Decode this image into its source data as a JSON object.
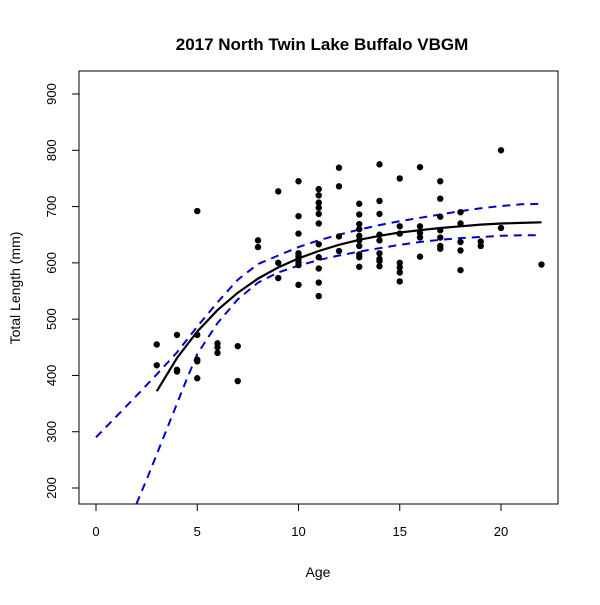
{
  "chart_data": {
    "type": "scatter",
    "title": "2017 North Twin Lake Buffalo VBGM",
    "xlabel": "Age",
    "ylabel": "Total Length (mm)",
    "xlim": [
      0,
      22
    ],
    "ylim": [
      200,
      900
    ],
    "x_ticks": [
      0,
      5,
      10,
      15,
      20
    ],
    "y_ticks": [
      200,
      300,
      400,
      500,
      600,
      700,
      800,
      900
    ],
    "grid": false,
    "observed_points": [
      {
        "x": 3,
        "y": 455
      },
      {
        "x": 3,
        "y": 418
      },
      {
        "x": 4,
        "y": 472
      },
      {
        "x": 4,
        "y": 410
      },
      {
        "x": 4,
        "y": 407
      },
      {
        "x": 5,
        "y": 692
      },
      {
        "x": 5,
        "y": 472
      },
      {
        "x": 5,
        "y": 428
      },
      {
        "x": 5,
        "y": 425
      },
      {
        "x": 5,
        "y": 395
      },
      {
        "x": 6,
        "y": 457
      },
      {
        "x": 6,
        "y": 450
      },
      {
        "x": 6,
        "y": 440
      },
      {
        "x": 7,
        "y": 452
      },
      {
        "x": 7,
        "y": 390
      },
      {
        "x": 8,
        "y": 640
      },
      {
        "x": 8,
        "y": 628
      },
      {
        "x": 9,
        "y": 727
      },
      {
        "x": 9,
        "y": 600
      },
      {
        "x": 9,
        "y": 573
      },
      {
        "x": 10,
        "y": 745
      },
      {
        "x": 10,
        "y": 683
      },
      {
        "x": 10,
        "y": 652
      },
      {
        "x": 10,
        "y": 617
      },
      {
        "x": 10,
        "y": 612
      },
      {
        "x": 10,
        "y": 607
      },
      {
        "x": 10,
        "y": 601
      },
      {
        "x": 10,
        "y": 596
      },
      {
        "x": 10,
        "y": 561
      },
      {
        "x": 11,
        "y": 731
      },
      {
        "x": 11,
        "y": 720
      },
      {
        "x": 11,
        "y": 707
      },
      {
        "x": 11,
        "y": 698
      },
      {
        "x": 11,
        "y": 687
      },
      {
        "x": 11,
        "y": 670
      },
      {
        "x": 11,
        "y": 633
      },
      {
        "x": 11,
        "y": 610
      },
      {
        "x": 11,
        "y": 590
      },
      {
        "x": 11,
        "y": 565
      },
      {
        "x": 11,
        "y": 541
      },
      {
        "x": 12,
        "y": 769
      },
      {
        "x": 12,
        "y": 736
      },
      {
        "x": 12,
        "y": 647
      },
      {
        "x": 12,
        "y": 621
      },
      {
        "x": 13,
        "y": 705
      },
      {
        "x": 13,
        "y": 686
      },
      {
        "x": 13,
        "y": 669
      },
      {
        "x": 13,
        "y": 660
      },
      {
        "x": 13,
        "y": 648
      },
      {
        "x": 13,
        "y": 640
      },
      {
        "x": 13,
        "y": 630
      },
      {
        "x": 13,
        "y": 615
      },
      {
        "x": 13,
        "y": 610
      },
      {
        "x": 13,
        "y": 593
      },
      {
        "x": 14,
        "y": 775
      },
      {
        "x": 14,
        "y": 710
      },
      {
        "x": 14,
        "y": 687
      },
      {
        "x": 14,
        "y": 650
      },
      {
        "x": 14,
        "y": 640
      },
      {
        "x": 14,
        "y": 617
      },
      {
        "x": 14,
        "y": 607
      },
      {
        "x": 14,
        "y": 603
      },
      {
        "x": 14,
        "y": 594
      },
      {
        "x": 15,
        "y": 750
      },
      {
        "x": 15,
        "y": 665
      },
      {
        "x": 15,
        "y": 652
      },
      {
        "x": 15,
        "y": 600
      },
      {
        "x": 15,
        "y": 592
      },
      {
        "x": 15,
        "y": 583
      },
      {
        "x": 15,
        "y": 567
      },
      {
        "x": 16,
        "y": 770
      },
      {
        "x": 16,
        "y": 665
      },
      {
        "x": 16,
        "y": 653
      },
      {
        "x": 16,
        "y": 645
      },
      {
        "x": 16,
        "y": 611
      },
      {
        "x": 17,
        "y": 745
      },
      {
        "x": 17,
        "y": 714
      },
      {
        "x": 17,
        "y": 682
      },
      {
        "x": 17,
        "y": 658
      },
      {
        "x": 17,
        "y": 645
      },
      {
        "x": 17,
        "y": 630
      },
      {
        "x": 17,
        "y": 625
      },
      {
        "x": 18,
        "y": 690
      },
      {
        "x": 18,
        "y": 670
      },
      {
        "x": 18,
        "y": 637
      },
      {
        "x": 18,
        "y": 622
      },
      {
        "x": 18,
        "y": 587
      },
      {
        "x": 19,
        "y": 638
      },
      {
        "x": 19,
        "y": 630
      },
      {
        "x": 20,
        "y": 800
      },
      {
        "x": 20,
        "y": 662
      },
      {
        "x": 22,
        "y": 597
      }
    ],
    "fit_curve": {
      "color": "#000000",
      "points": [
        {
          "x": 3,
          "y": 372
        },
        {
          "x": 4,
          "y": 431
        },
        {
          "x": 5,
          "y": 478
        },
        {
          "x": 6,
          "y": 516
        },
        {
          "x": 7,
          "y": 547
        },
        {
          "x": 8,
          "y": 572
        },
        {
          "x": 9,
          "y": 592
        },
        {
          "x": 10,
          "y": 608
        },
        {
          "x": 11,
          "y": 621
        },
        {
          "x": 12,
          "y": 632
        },
        {
          "x": 13,
          "y": 641
        },
        {
          "x": 14,
          "y": 648
        },
        {
          "x": 15,
          "y": 654
        },
        {
          "x": 16,
          "y": 658
        },
        {
          "x": 17,
          "y": 662
        },
        {
          "x": 18,
          "y": 665
        },
        {
          "x": 19,
          "y": 668
        },
        {
          "x": 20,
          "y": 670
        },
        {
          "x": 21,
          "y": 671
        },
        {
          "x": 22,
          "y": 672
        }
      ]
    },
    "upper_band": {
      "color": "#0000cc",
      "points": [
        {
          "x": 0,
          "y": 290
        },
        {
          "x": 1,
          "y": 327
        },
        {
          "x": 2,
          "y": 364
        },
        {
          "x": 3,
          "y": 402
        },
        {
          "x": 4,
          "y": 441
        },
        {
          "x": 5,
          "y": 487
        },
        {
          "x": 6,
          "y": 530
        },
        {
          "x": 7,
          "y": 570
        },
        {
          "x": 8,
          "y": 598
        },
        {
          "x": 9,
          "y": 613
        },
        {
          "x": 10,
          "y": 628
        },
        {
          "x": 11,
          "y": 640
        },
        {
          "x": 12,
          "y": 650
        },
        {
          "x": 13,
          "y": 659
        },
        {
          "x": 14,
          "y": 667
        },
        {
          "x": 15,
          "y": 674
        },
        {
          "x": 16,
          "y": 680
        },
        {
          "x": 17,
          "y": 686
        },
        {
          "x": 18,
          "y": 692
        },
        {
          "x": 19,
          "y": 697
        },
        {
          "x": 20,
          "y": 701
        },
        {
          "x": 21,
          "y": 704
        },
        {
          "x": 22,
          "y": 705
        }
      ]
    },
    "lower_band": {
      "color": "#0000cc",
      "points": [
        {
          "x": 2,
          "y": 172
        },
        {
          "x": 2.5,
          "y": 215
        },
        {
          "x": 3,
          "y": 260
        },
        {
          "x": 3.5,
          "y": 305
        },
        {
          "x": 4,
          "y": 350
        },
        {
          "x": 4.5,
          "y": 395
        },
        {
          "x": 5,
          "y": 438
        },
        {
          "x": 6,
          "y": 493
        },
        {
          "x": 7,
          "y": 535
        },
        {
          "x": 8,
          "y": 565
        },
        {
          "x": 9,
          "y": 583
        },
        {
          "x": 10,
          "y": 595
        },
        {
          "x": 11,
          "y": 605
        },
        {
          "x": 12,
          "y": 613
        },
        {
          "x": 13,
          "y": 620
        },
        {
          "x": 14,
          "y": 626
        },
        {
          "x": 15,
          "y": 632
        },
        {
          "x": 16,
          "y": 637
        },
        {
          "x": 17,
          "y": 641
        },
        {
          "x": 18,
          "y": 644
        },
        {
          "x": 19,
          "y": 646
        },
        {
          "x": 20,
          "y": 648
        },
        {
          "x": 21,
          "y": 649
        },
        {
          "x": 22,
          "y": 649
        }
      ]
    }
  }
}
